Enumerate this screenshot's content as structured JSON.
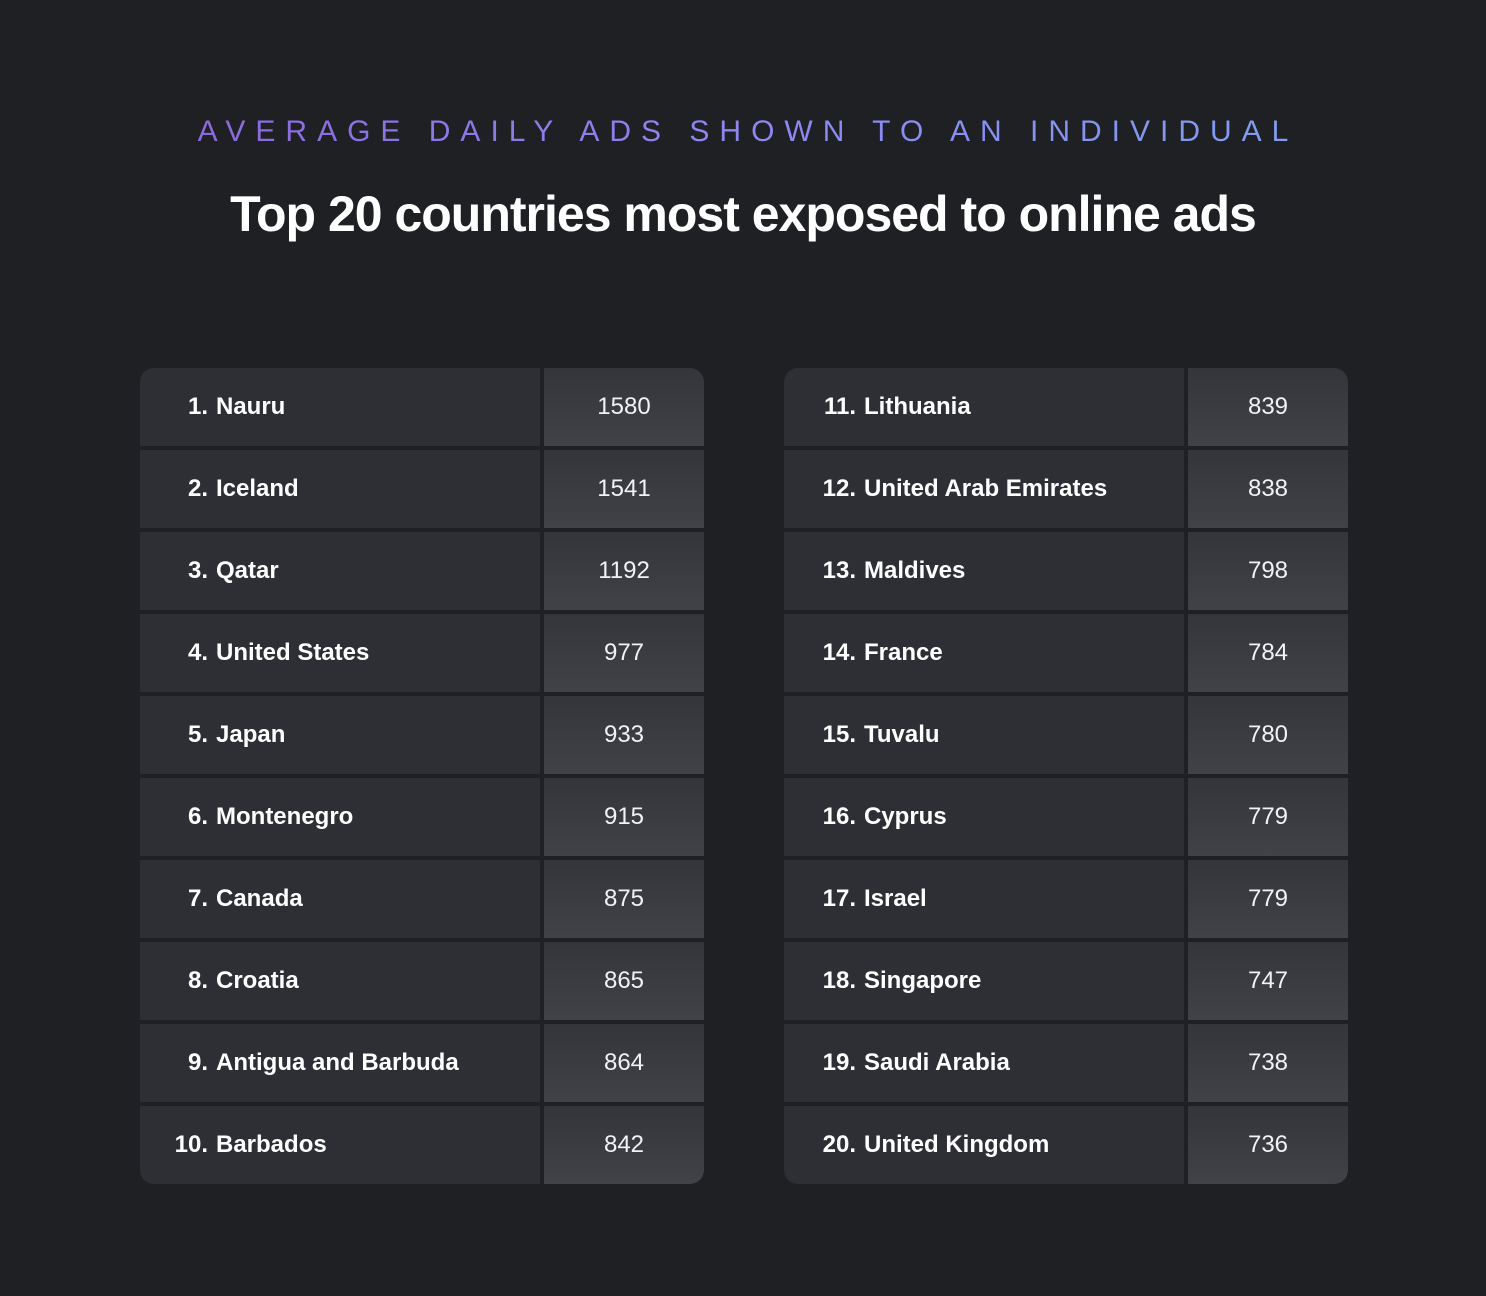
{
  "header": {
    "subtitle": "AVERAGE DAILY ADS SHOWN TO AN INDIVIDUAL",
    "title": "Top 20 countries most exposed to online ads"
  },
  "colors": {
    "background": "#1f2024",
    "cell": "#2e2f35",
    "value_cell": "#3a3b41",
    "subtitle_gradient_start": "#8a5fd6",
    "subtitle_gradient_end": "#7aa6ec",
    "text": "#ffffff"
  },
  "chart_data": {
    "type": "table",
    "title": "Top 20 countries most exposed to online ads",
    "subtitle": "AVERAGE DAILY ADS SHOWN TO AN INDIVIDUAL",
    "left_rows": [
      {
        "rank": "1.",
        "country": "Nauru",
        "value": 1580
      },
      {
        "rank": "2.",
        "country": "Iceland",
        "value": 1541
      },
      {
        "rank": "3.",
        "country": "Qatar",
        "value": 1192
      },
      {
        "rank": "4.",
        "country": "United States",
        "value": 977
      },
      {
        "rank": "5.",
        "country": "Japan",
        "value": 933
      },
      {
        "rank": "6.",
        "country": "Montenegro",
        "value": 915
      },
      {
        "rank": "7.",
        "country": "Canada",
        "value": 875
      },
      {
        "rank": "8.",
        "country": "Croatia",
        "value": 865
      },
      {
        "rank": "9.",
        "country": "Antigua and Barbuda",
        "value": 864
      },
      {
        "rank": "10.",
        "country": "Barbados",
        "value": 842
      }
    ],
    "right_rows": [
      {
        "rank": "11.",
        "country": "Lithuania",
        "value": 839
      },
      {
        "rank": "12.",
        "country": "United Arab Emirates",
        "value": 838
      },
      {
        "rank": "13.",
        "country": "Maldives",
        "value": 798
      },
      {
        "rank": "14.",
        "country": "France",
        "value": 784
      },
      {
        "rank": "15.",
        "country": "Tuvalu",
        "value": 780
      },
      {
        "rank": "16.",
        "country": "Cyprus",
        "value": 779
      },
      {
        "rank": "17.",
        "country": "Israel",
        "value": 779
      },
      {
        "rank": "18.",
        "country": "Singapore",
        "value": 747
      },
      {
        "rank": "19.",
        "country": "Saudi Arabia",
        "value": 738
      },
      {
        "rank": "20.",
        "country": "United Kingdom",
        "value": 736
      }
    ]
  }
}
